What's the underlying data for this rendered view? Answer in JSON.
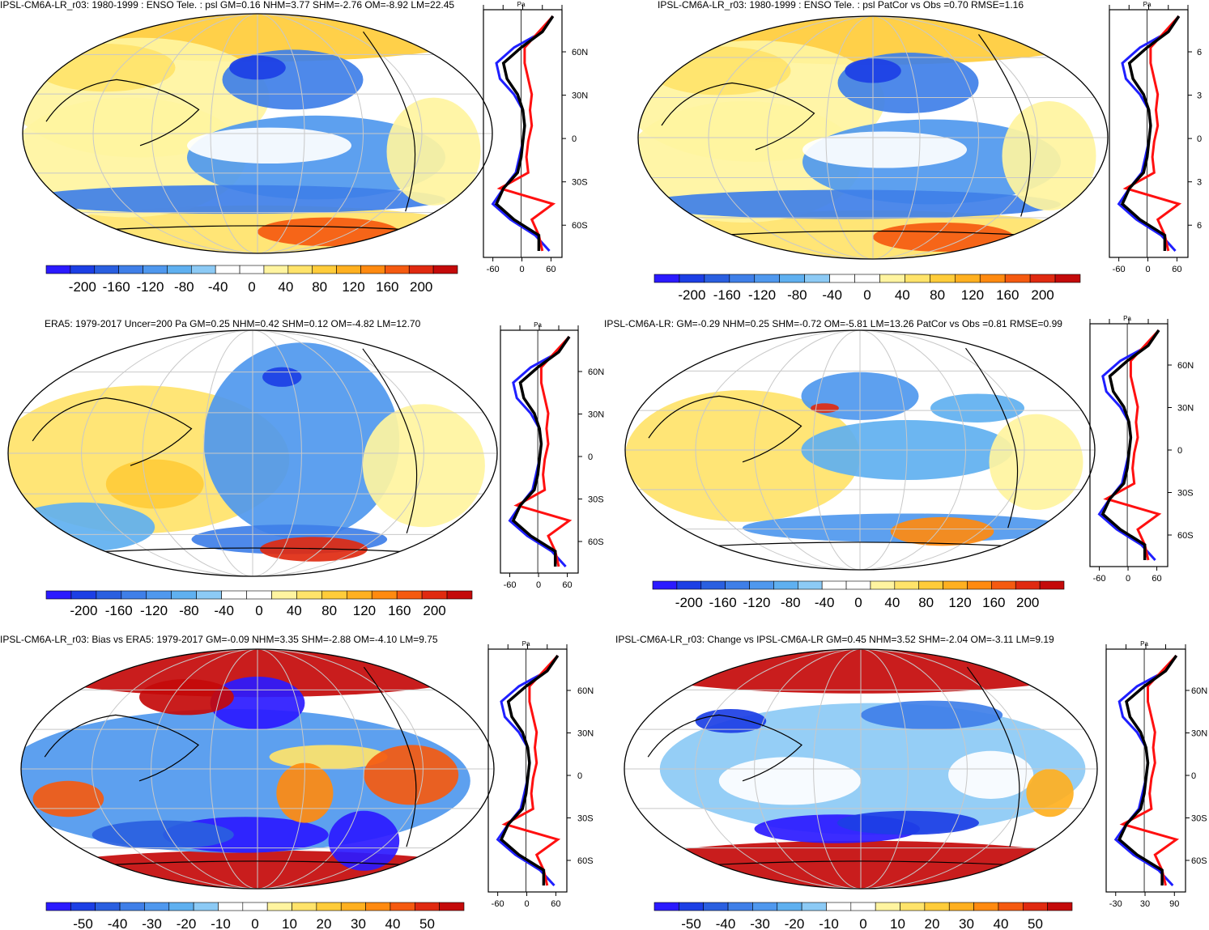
{
  "colorbar_colors": [
    "#2b1aff",
    "#1c3fe5",
    "#2a5fe0",
    "#3f7fe8",
    "#4f98ee",
    "#5fb0f0",
    "#8ccaf5",
    "#ffffff",
    "#ffffff",
    "#fff4a0",
    "#ffe36a",
    "#ffcc3a",
    "#ffb020",
    "#ff8a10",
    "#f55a10",
    "#e02a10",
    "#c40a0a"
  ],
  "profile_colors": {
    "model": "#ff1010",
    "obs": "#1f1fff",
    "ref": "#000000"
  },
  "panels": [
    {
      "title": "IPSL-CM6A-LR_r03: 1980-1999 : ENSO Tele. : psl GM=0.16 NHM=3.77 SHM=-2.76 OM=-8.92 LM=22.45",
      "colorbar_labels": [
        "-200",
        "-160",
        "-120",
        "-80",
        "-40",
        "0",
        "40",
        "80",
        "120",
        "160",
        "200"
      ],
      "lat_labels": [
        "60N",
        "30N",
        "0",
        "30S",
        "60S"
      ],
      "x_labels": [
        "-60",
        "0",
        "60"
      ],
      "unit": "Pa",
      "style": "enso_model"
    },
    {
      "title": "IPSL-CM6A-LR_r03: 1980-1999 : ENSO Tele. : psl PatCor vs Obs =0.70 RMSE=1.16",
      "colorbar_labels": [
        "-200",
        "-160",
        "-120",
        "-80",
        "-40",
        "0",
        "40",
        "80",
        "120",
        "160",
        "200"
      ],
      "lat_labels": [
        "6",
        "3",
        "0",
        "3",
        "6"
      ],
      "x_labels": [
        "-60",
        "0",
        "60"
      ],
      "unit": "Pa",
      "style": "enso_model"
    },
    {
      "title": "ERA5: 1979-2017 Uncer=200 Pa GM=0.25 NHM=0.42 SHM=0.12 OM=-4.82 LM=12.70",
      "colorbar_labels": [
        "-200",
        "-160",
        "-120",
        "-80",
        "-40",
        "0",
        "40",
        "80",
        "120",
        "160",
        "200"
      ],
      "lat_labels": [
        "60N",
        "30N",
        "0",
        "30S",
        "60S"
      ],
      "x_labels": [
        "-60",
        "0",
        "60"
      ],
      "unit": "Pa",
      "style": "enso_obs"
    },
    {
      "title": "IPSL-CM6A-LR: GM=-0.29 NHM=0.25 SHM=-0.72 OM=-5.81 LM=13.26 PatCor vs Obs =0.81 RMSE=0.99",
      "colorbar_labels": [
        "-200",
        "-160",
        "-120",
        "-80",
        "-40",
        "0",
        "40",
        "80",
        "120",
        "160",
        "200"
      ],
      "lat_labels": [
        "60N",
        "30N",
        "0",
        "30S",
        "60S"
      ],
      "x_labels": [
        "-60",
        "0",
        "60"
      ],
      "unit": "Pa",
      "style": "enso_ref"
    },
    {
      "title": "IPSL-CM6A-LR_r03: Bias vs ERA5: 1979-2017 GM=-0.09 NHM=3.35 SHM=-2.88 OM=-4.10 LM=9.75",
      "colorbar_labels": [
        "-50",
        "-40",
        "-30",
        "-20",
        "-10",
        "0",
        "10",
        "20",
        "30",
        "40",
        "50"
      ],
      "lat_labels": [
        "60N",
        "30N",
        "0",
        "30S",
        "60S"
      ],
      "x_labels": [
        "-60",
        "0",
        "60"
      ],
      "unit": "Pa",
      "style": "bias"
    },
    {
      "title": "IPSL-CM6A-LR_r03: Change vs IPSL-CM6A-LR GM=0.45 NHM=3.52 SHM=-2.04 OM=-3.11 LM=9.19",
      "colorbar_labels": [
        "-50",
        "-40",
        "-30",
        "-20",
        "-10",
        "0",
        "10",
        "20",
        "30",
        "40",
        "50"
      ],
      "lat_labels": [
        "60N",
        "30N",
        "0",
        "30S",
        "60S"
      ],
      "x_labels": [
        "-30",
        "30",
        "90"
      ],
      "unit": "Pa",
      "style": "change"
    }
  ]
}
